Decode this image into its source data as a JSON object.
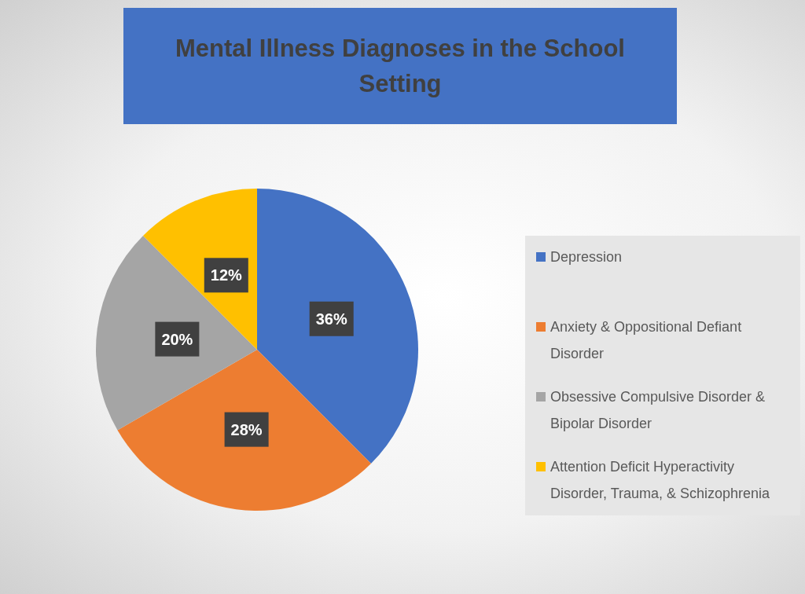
{
  "chart_data": {
    "type": "pie",
    "title": "Mental Illness Diagnoses in the School Setting",
    "categories": [
      "Depression",
      "Anxiety & Oppositional Defiant Disorder",
      "Obsessive Compulsive Disorder & Bipolar Disorder",
      "Attention Deficit Hyperactivity Disorder, Trauma, & Schizophrenia"
    ],
    "values": [
      36,
      28,
      20,
      12
    ],
    "colors": [
      "#4472c4",
      "#ed7d31",
      "#a5a5a5",
      "#ffc000"
    ],
    "value_labels": [
      "36%",
      "28%",
      "20%",
      "12%"
    ],
    "legend": "right"
  }
}
